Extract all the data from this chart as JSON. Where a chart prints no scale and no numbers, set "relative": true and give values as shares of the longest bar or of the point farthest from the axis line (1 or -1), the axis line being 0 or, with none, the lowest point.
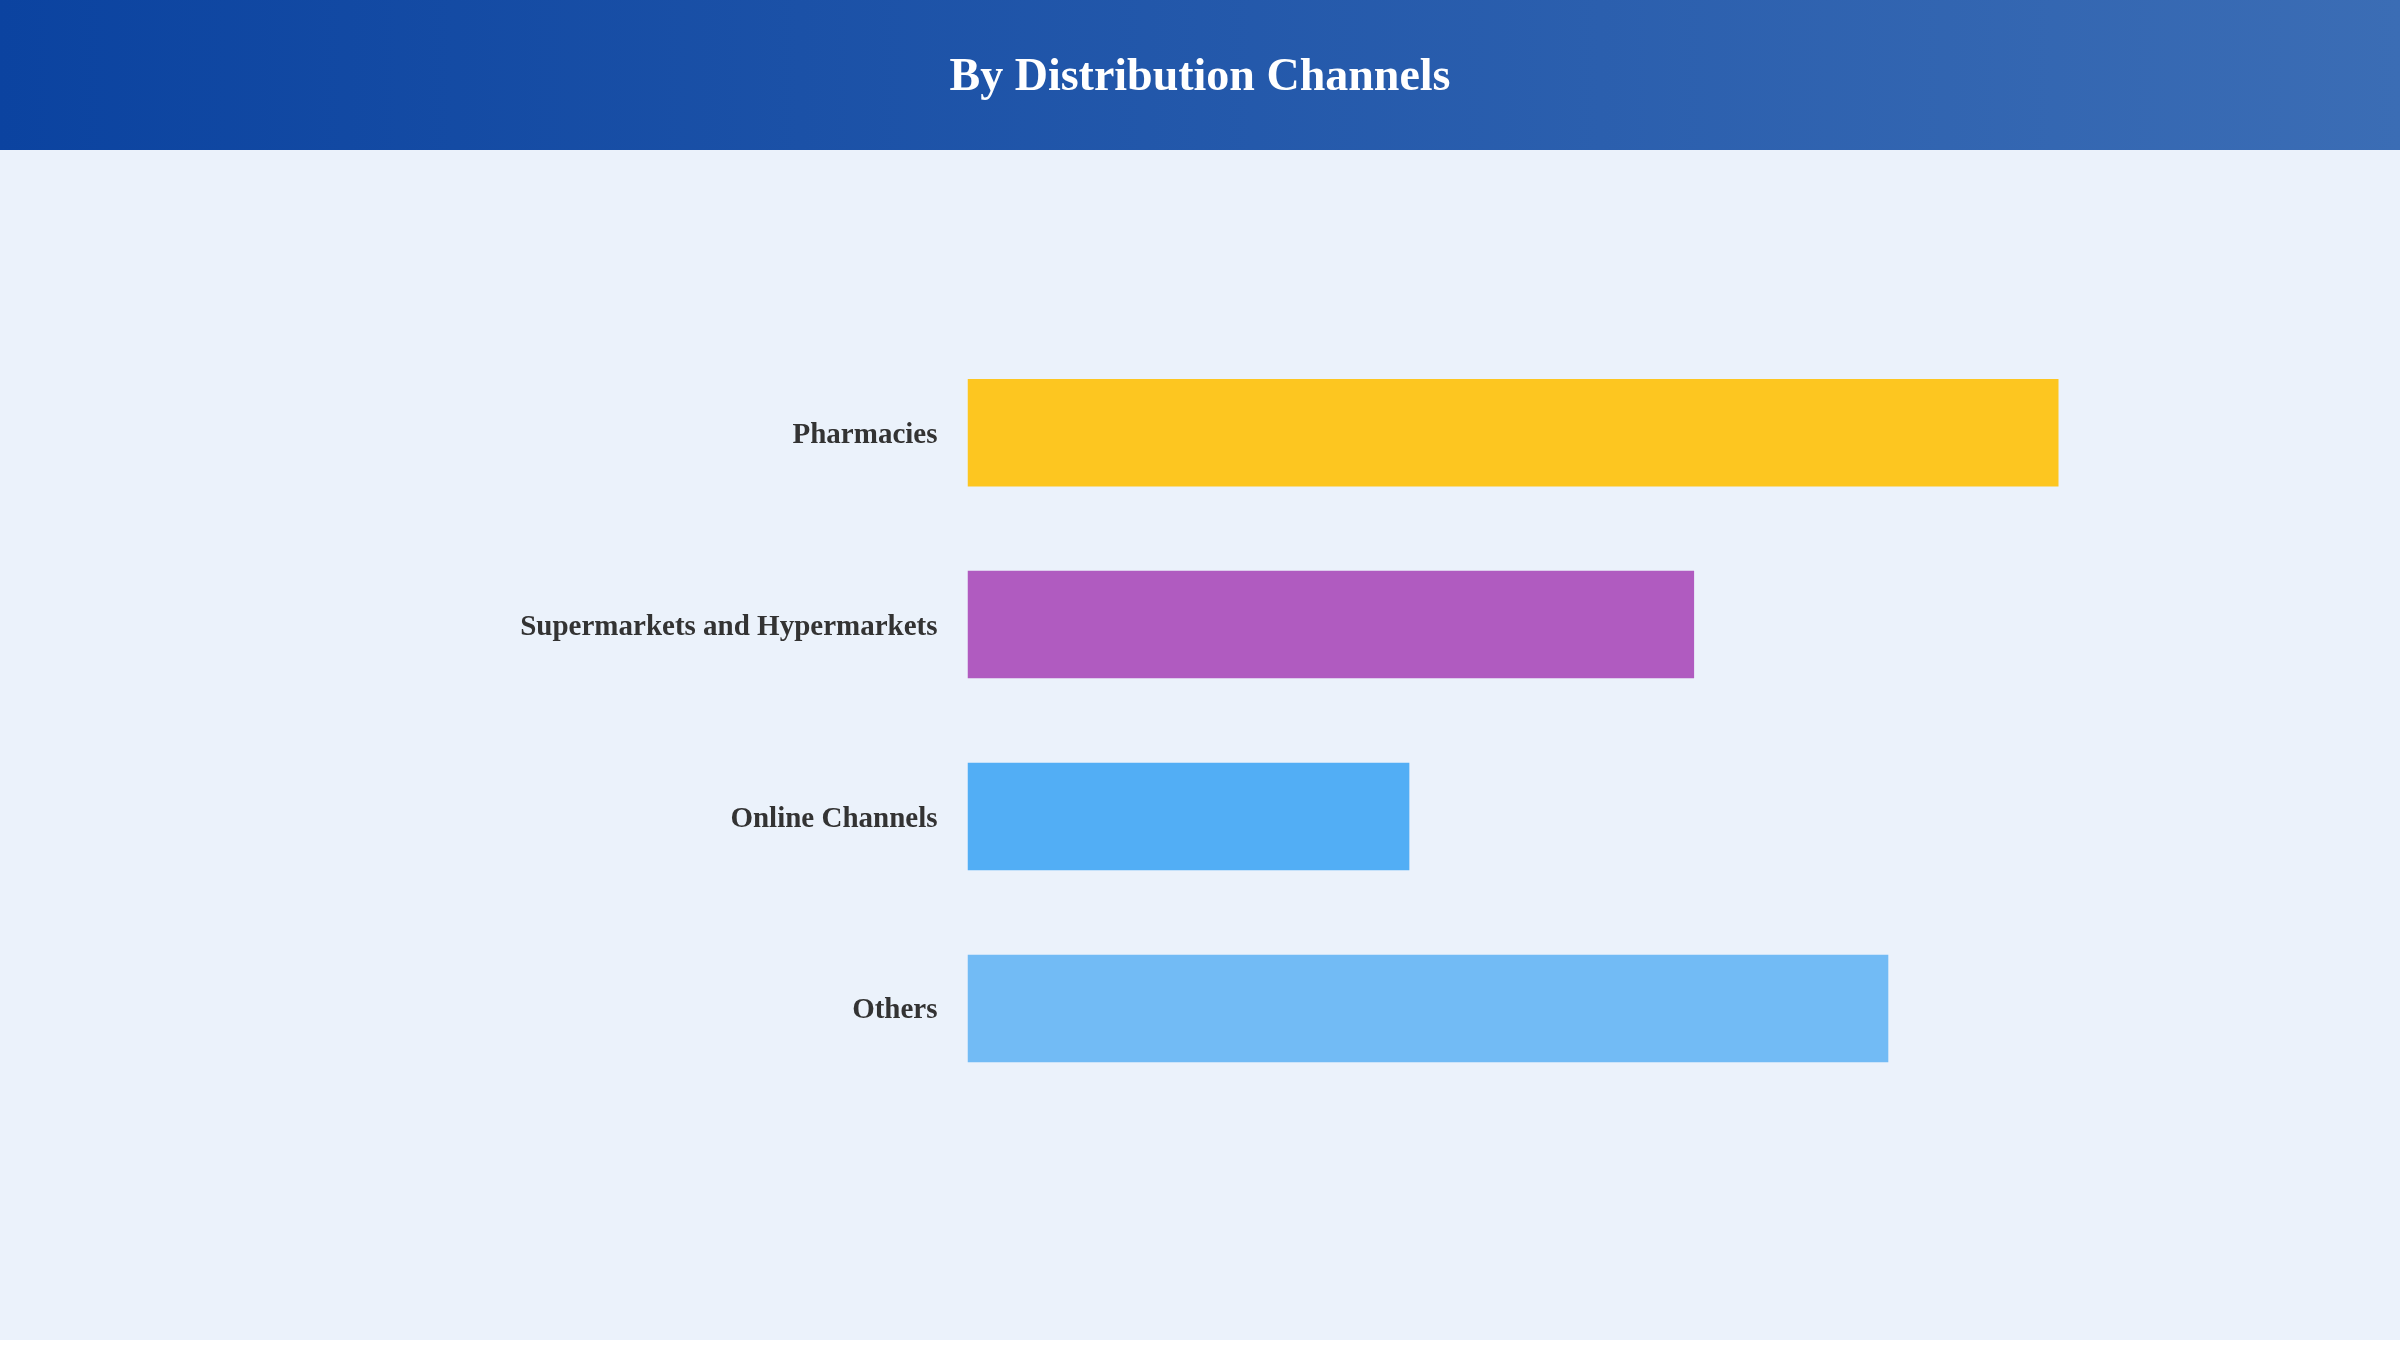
{
  "chart_data": {
    "type": "bar",
    "orientation": "horizontal",
    "relative": true,
    "title": "By Distribution Channels",
    "categories": [
      "Pharmacies",
      "Supermarkets and Hypermarkets",
      "Online Channels",
      "Others"
    ],
    "values": [
      1,
      0.666,
      0.405,
      0.844
    ],
    "colors": [
      "#fdc620",
      "#b05bc0",
      "#52aef5",
      "#72bbf5"
    ],
    "grid": false
  }
}
